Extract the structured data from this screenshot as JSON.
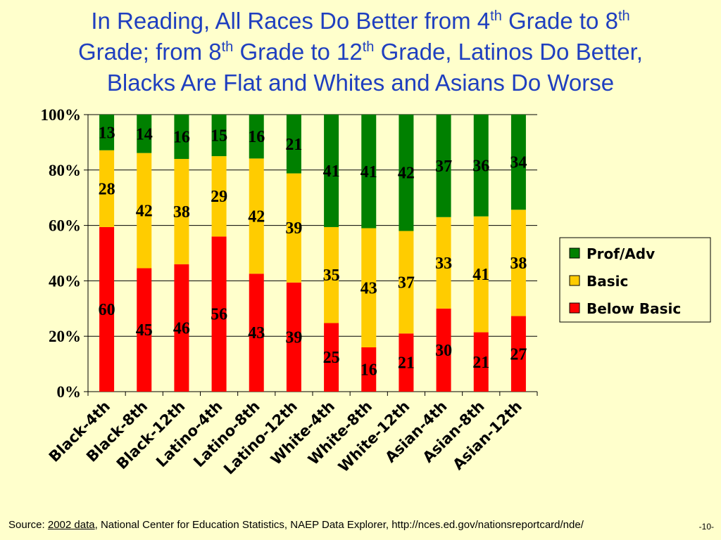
{
  "title": {
    "line1_a": "In Reading, All Races Do Better from 4",
    "sup1": "th",
    "line1_b": " Grade to 8",
    "sup2": "th",
    "line2_a": "Grade; from 8",
    "sup3": "th",
    "line2_b": " Grade to 12",
    "sup4": "th",
    "line2_c": " Grade, Latinos Do Better,",
    "line3": "Blacks Are Flat and Whites and Asians Do Worse"
  },
  "chart_data": {
    "type": "bar",
    "stacked": true,
    "percent": true,
    "categories": [
      "Black-4th",
      "Black-8th",
      "Black-12th",
      "Latino-4th",
      "Latino-8th",
      "Latino-12th",
      "White-4th",
      "White-8th",
      "White-12th",
      "Asian-4th",
      "Asian-8th",
      "Asian-12th"
    ],
    "series": [
      {
        "name": "Below Basic",
        "color": "#ff0000",
        "values": [
          60,
          45,
          46,
          56,
          43,
          39,
          25,
          16,
          21,
          30,
          21,
          27
        ]
      },
      {
        "name": "Basic",
        "color": "#ffcc00",
        "values": [
          28,
          42,
          38,
          29,
          42,
          39,
          35,
          43,
          37,
          33,
          41,
          38
        ]
      },
      {
        "name": "Prof/Adv",
        "color": "#008000",
        "values": [
          13,
          14,
          16,
          15,
          16,
          21,
          41,
          41,
          42,
          37,
          36,
          34
        ]
      }
    ],
    "yticks": [
      "0%",
      "20%",
      "40%",
      "60%",
      "80%",
      "100%"
    ],
    "ylim": [
      0,
      100
    ],
    "legend": [
      "Prof/Adv",
      "Basic",
      "Below Basic"
    ],
    "legend_position": "right",
    "grid": true
  },
  "footer": {
    "prefix": "Source: ",
    "link": "2002 data",
    "rest": ", National Center for Education Statistics, NAEP Data Explorer, http://nces.ed.gov/nationsreportcard/nde/"
  },
  "page_number": "-10-"
}
